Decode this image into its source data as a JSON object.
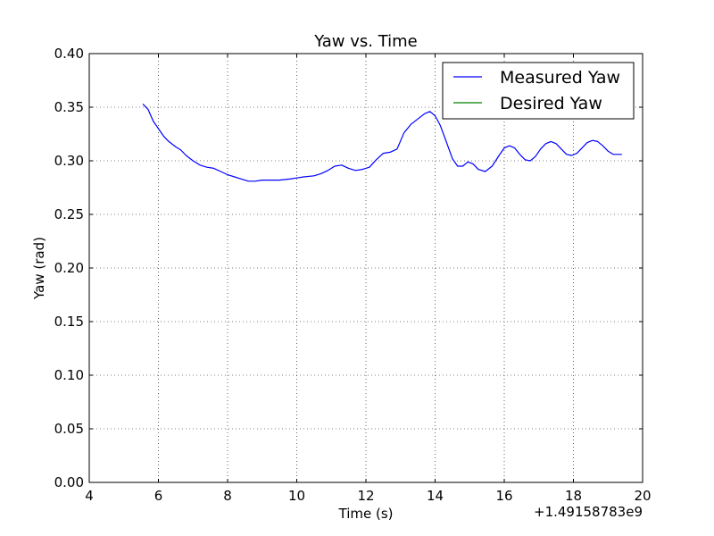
{
  "chart_data": {
    "type": "line",
    "title": "Yaw vs. Time",
    "xlabel": "Time (s)",
    "ylabel": "Yaw (rad)",
    "x_offset_label": "+1.49158783e9",
    "xlim": [
      4,
      20
    ],
    "ylim": [
      0.0,
      0.4
    ],
    "xticks": [
      "4",
      "6",
      "8",
      "10",
      "12",
      "14",
      "16",
      "18",
      "20"
    ],
    "yticks": [
      "0.00",
      "0.05",
      "0.10",
      "0.15",
      "0.20",
      "0.25",
      "0.30",
      "0.35",
      "0.40"
    ],
    "grid": true,
    "legend_position": "top-right",
    "series": [
      {
        "name": "Measured Yaw",
        "color": "#0000ff",
        "x": [
          5.55,
          5.7,
          5.85,
          6.0,
          6.15,
          6.3,
          6.5,
          6.65,
          6.8,
          7.0,
          7.2,
          7.4,
          7.6,
          7.8,
          8.0,
          8.2,
          8.4,
          8.6,
          8.8,
          9.0,
          9.2,
          9.5,
          9.8,
          10.0,
          10.2,
          10.5,
          10.7,
          10.9,
          11.1,
          11.3,
          11.5,
          11.7,
          11.9,
          12.1,
          12.3,
          12.5,
          12.7,
          12.9,
          13.1,
          13.3,
          13.5,
          13.7,
          13.85,
          14.0,
          14.15,
          14.3,
          14.5,
          14.65,
          14.8,
          14.95,
          15.1,
          15.25,
          15.45,
          15.65,
          15.85,
          16.0,
          16.15,
          16.3,
          16.45,
          16.6,
          16.75,
          16.9,
          17.05,
          17.2,
          17.35,
          17.5,
          17.65,
          17.8,
          17.95,
          18.1,
          18.25,
          18.4,
          18.55,
          18.7,
          18.85,
          19.0,
          19.15,
          19.3,
          19.4
        ],
        "y": [
          0.353,
          0.348,
          0.337,
          0.33,
          0.323,
          0.318,
          0.313,
          0.31,
          0.305,
          0.3,
          0.296,
          0.294,
          0.293,
          0.29,
          0.287,
          0.285,
          0.283,
          0.281,
          0.281,
          0.282,
          0.282,
          0.282,
          0.283,
          0.284,
          0.285,
          0.286,
          0.288,
          0.291,
          0.295,
          0.296,
          0.293,
          0.291,
          0.292,
          0.294,
          0.301,
          0.307,
          0.308,
          0.311,
          0.326,
          0.334,
          0.339,
          0.344,
          0.346,
          0.342,
          0.333,
          0.32,
          0.302,
          0.295,
          0.295,
          0.299,
          0.297,
          0.292,
          0.29,
          0.295,
          0.305,
          0.312,
          0.314,
          0.312,
          0.306,
          0.301,
          0.3,
          0.304,
          0.311,
          0.316,
          0.318,
          0.316,
          0.311,
          0.306,
          0.305,
          0.307,
          0.312,
          0.317,
          0.319,
          0.318,
          0.314,
          0.309,
          0.306,
          0.306,
          0.306
        ]
      },
      {
        "name": "Desired Yaw",
        "color": "#008000",
        "x": [],
        "y": []
      }
    ]
  }
}
